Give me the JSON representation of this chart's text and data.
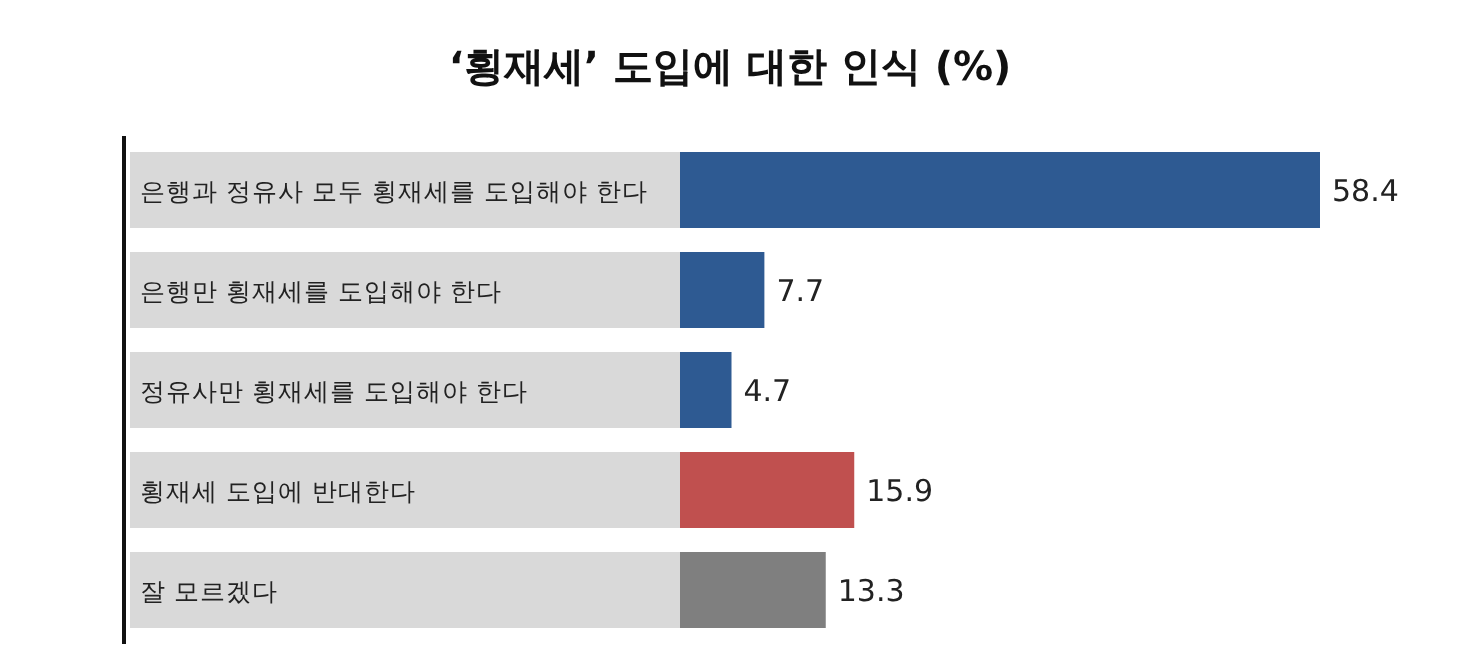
{
  "chart_data": {
    "type": "bar",
    "orientation": "horizontal",
    "title": "‘횡재세’ 도입에 대한 인식 (%)",
    "categories": [
      "은행과 정유사 모두 횡재세를 도입해야 한다",
      "은행만 횡재세를 도입해야 한다",
      "정유사만 횡재세를 도입해야 한다",
      "횡재세 도입에 반대한다",
      "잘 모르겠다"
    ],
    "values": [
      58.4,
      7.7,
      4.7,
      15.9,
      13.3
    ],
    "colors": [
      "#2e5a92",
      "#2e5a92",
      "#2e5a92",
      "#c0504f",
      "#7f7f7f"
    ],
    "data_labels": true
  }
}
